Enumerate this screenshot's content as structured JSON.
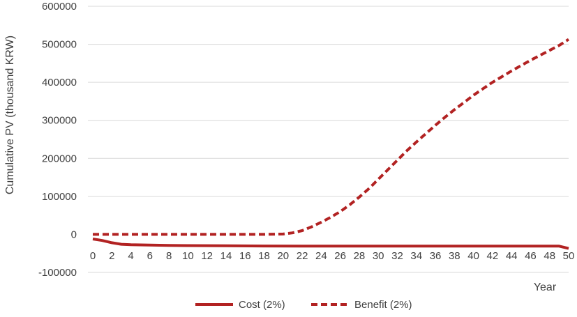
{
  "chart_data": {
    "type": "line",
    "title": "",
    "xlabel": "Year",
    "ylabel": "Cumulative PV (thousand KRW)",
    "xlim": [
      0,
      50
    ],
    "ylim": [
      -100000,
      600000
    ],
    "x_ticks": [
      0,
      2,
      4,
      6,
      8,
      10,
      12,
      14,
      16,
      18,
      20,
      22,
      24,
      26,
      28,
      30,
      32,
      34,
      36,
      38,
      40,
      42,
      44,
      46,
      48,
      50
    ],
    "y_ticks": [
      -100000,
      0,
      100000,
      200000,
      300000,
      400000,
      500000,
      600000
    ],
    "grid": "horizontal",
    "legend_position": "bottom",
    "colors": {
      "series": "#B22222",
      "grid": "#D9D9D9",
      "text": "#404040"
    },
    "series": [
      {
        "name": "Cost (2%)",
        "style": "solid",
        "x": [
          0,
          1,
          2,
          3,
          4,
          6,
          8,
          10,
          14,
          18,
          22,
          26,
          30,
          34,
          38,
          42,
          46,
          49,
          50
        ],
        "y": [
          -12000,
          -16000,
          -22000,
          -26000,
          -27000,
          -28000,
          -29000,
          -29500,
          -30000,
          -30500,
          -31000,
          -31000,
          -31000,
          -31000,
          -31000,
          -31000,
          -31000,
          -31000,
          -37000
        ]
      },
      {
        "name": "Benefit (2%)",
        "style": "dashed",
        "x": [
          0,
          2,
          4,
          6,
          8,
          10,
          12,
          14,
          16,
          18,
          20,
          21,
          22,
          23,
          24,
          25,
          26,
          27,
          28,
          29,
          30,
          31,
          32,
          33,
          34,
          35,
          36,
          37,
          38,
          39,
          40,
          41,
          42,
          43,
          44,
          45,
          46,
          47,
          48,
          49,
          50
        ],
        "y": [
          0,
          0,
          0,
          0,
          0,
          0,
          0,
          0,
          0,
          0,
          1000,
          4000,
          10000,
          20000,
          32000,
          45000,
          60000,
          78000,
          98000,
          120000,
          145000,
          170000,
          195000,
          220000,
          243000,
          265000,
          287000,
          308000,
          328000,
          347000,
          366000,
          383000,
          400000,
          415000,
          430000,
          444000,
          458000,
          471000,
          484000,
          497000,
          513000
        ]
      }
    ]
  }
}
